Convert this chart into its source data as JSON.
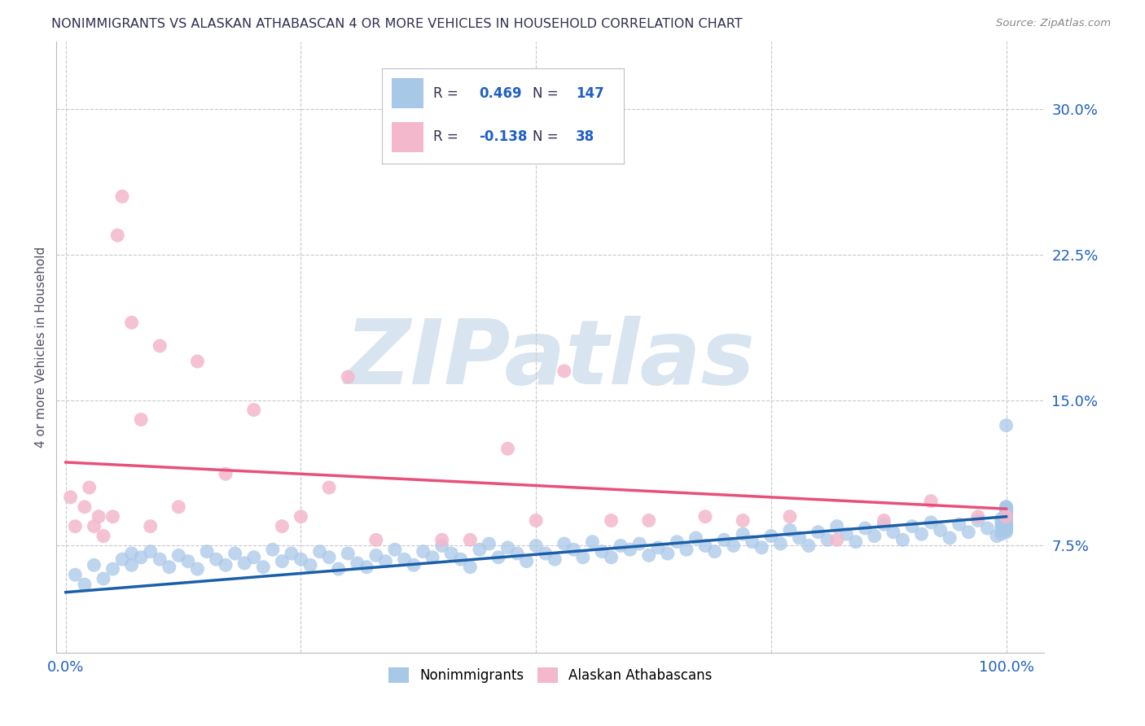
{
  "title": "NONIMMIGRANTS VS ALASKAN ATHABASCAN 4 OR MORE VEHICLES IN HOUSEHOLD CORRELATION CHART",
  "source": "Source: ZipAtlas.com",
  "ylabel": "4 or more Vehicles in Household",
  "y_ticks": [
    0.075,
    0.15,
    0.225,
    0.3
  ],
  "y_tick_labels": [
    "7.5%",
    "15.0%",
    "22.5%",
    "30.0%"
  ],
  "ylim": [
    0.02,
    0.335
  ],
  "xlim": [
    -0.01,
    1.04
  ],
  "blue_R": "0.469",
  "blue_N": "147",
  "pink_R": "-0.138",
  "pink_N": "38",
  "blue_color": "#a8c8e8",
  "pink_color": "#f4b8cc",
  "blue_line_color": "#1a5fa8",
  "pink_line_color": "#e8507a",
  "watermark_text": "ZIPatlas",
  "watermark_color": "#d8e4f0",
  "title_color": "#303050",
  "axis_tick_color": "#2060c0",
  "legend_label_color": "#2060c0",
  "grid_color": "#c8c8d0",
  "background_color": "#ffffff",
  "blue_line_x0": 0.0,
  "blue_line_y0": 0.051,
  "blue_line_x1": 1.0,
  "blue_line_y1": 0.09,
  "pink_line_x0": 0.0,
  "pink_line_y0": 0.118,
  "pink_line_x1": 1.0,
  "pink_line_y1": 0.094,
  "blue_x": [
    0.01,
    0.02,
    0.03,
    0.04,
    0.05,
    0.06,
    0.07,
    0.07,
    0.08,
    0.09,
    0.1,
    0.11,
    0.12,
    0.13,
    0.14,
    0.15,
    0.16,
    0.17,
    0.18,
    0.19,
    0.2,
    0.21,
    0.22,
    0.23,
    0.24,
    0.25,
    0.26,
    0.27,
    0.28,
    0.29,
    0.3,
    0.31,
    0.32,
    0.33,
    0.34,
    0.35,
    0.36,
    0.37,
    0.38,
    0.39,
    0.4,
    0.41,
    0.42,
    0.43,
    0.44,
    0.45,
    0.46,
    0.47,
    0.48,
    0.49,
    0.5,
    0.51,
    0.52,
    0.53,
    0.54,
    0.55,
    0.56,
    0.57,
    0.58,
    0.59,
    0.6,
    0.61,
    0.62,
    0.63,
    0.64,
    0.65,
    0.66,
    0.67,
    0.68,
    0.69,
    0.7,
    0.71,
    0.72,
    0.73,
    0.74,
    0.75,
    0.76,
    0.77,
    0.78,
    0.79,
    0.8,
    0.81,
    0.82,
    0.83,
    0.84,
    0.85,
    0.86,
    0.87,
    0.88,
    0.89,
    0.9,
    0.91,
    0.92,
    0.93,
    0.94,
    0.95,
    0.96,
    0.97,
    0.98,
    0.99,
    0.995,
    0.995,
    0.995,
    0.995,
    0.995,
    1.0,
    1.0,
    1.0,
    1.0,
    1.0,
    1.0,
    1.0,
    1.0,
    1.0,
    1.0,
    1.0,
    1.0,
    1.0,
    1.0,
    1.0,
    1.0,
    1.0,
    1.0,
    1.0,
    1.0,
    1.0,
    1.0,
    1.0,
    1.0,
    1.0,
    1.0,
    1.0,
    1.0,
    1.0,
    1.0,
    1.0,
    1.0,
    1.0,
    1.0,
    1.0,
    1.0,
    1.0,
    1.0,
    1.0,
    1.0,
    1.0,
    1.0
  ],
  "blue_y": [
    0.06,
    0.055,
    0.065,
    0.058,
    0.063,
    0.068,
    0.071,
    0.065,
    0.069,
    0.072,
    0.068,
    0.064,
    0.07,
    0.067,
    0.063,
    0.072,
    0.068,
    0.065,
    0.071,
    0.066,
    0.069,
    0.064,
    0.073,
    0.067,
    0.071,
    0.068,
    0.065,
    0.072,
    0.069,
    0.063,
    0.071,
    0.066,
    0.064,
    0.07,
    0.067,
    0.073,
    0.068,
    0.065,
    0.072,
    0.069,
    0.075,
    0.071,
    0.068,
    0.064,
    0.073,
    0.076,
    0.069,
    0.074,
    0.071,
    0.067,
    0.075,
    0.071,
    0.068,
    0.076,
    0.073,
    0.069,
    0.077,
    0.072,
    0.069,
    0.075,
    0.073,
    0.076,
    0.07,
    0.074,
    0.071,
    0.077,
    0.073,
    0.079,
    0.075,
    0.072,
    0.078,
    0.075,
    0.081,
    0.077,
    0.074,
    0.08,
    0.076,
    0.083,
    0.079,
    0.075,
    0.082,
    0.078,
    0.085,
    0.081,
    0.077,
    0.084,
    0.08,
    0.086,
    0.082,
    0.078,
    0.085,
    0.081,
    0.087,
    0.083,
    0.079,
    0.086,
    0.082,
    0.088,
    0.084,
    0.08,
    0.087,
    0.083,
    0.089,
    0.085,
    0.081,
    0.088,
    0.084,
    0.09,
    0.086,
    0.082,
    0.089,
    0.085,
    0.091,
    0.087,
    0.083,
    0.09,
    0.086,
    0.092,
    0.088,
    0.084,
    0.091,
    0.087,
    0.093,
    0.089,
    0.085,
    0.092,
    0.088,
    0.094,
    0.09,
    0.086,
    0.093,
    0.089,
    0.095,
    0.091,
    0.087,
    0.094,
    0.137,
    0.09,
    0.086,
    0.093,
    0.089,
    0.095,
    0.091,
    0.087,
    0.094,
    0.09,
    0.086
  ],
  "pink_x": [
    0.005,
    0.01,
    0.02,
    0.025,
    0.03,
    0.035,
    0.04,
    0.05,
    0.055,
    0.06,
    0.07,
    0.08,
    0.09,
    0.1,
    0.12,
    0.14,
    0.17,
    0.2,
    0.23,
    0.25,
    0.28,
    0.3,
    0.33,
    0.4,
    0.43,
    0.47,
    0.5,
    0.53,
    0.58,
    0.62,
    0.68,
    0.72,
    0.77,
    0.82,
    0.87,
    0.92,
    0.97,
    1.0
  ],
  "pink_y": [
    0.1,
    0.085,
    0.095,
    0.105,
    0.085,
    0.09,
    0.08,
    0.09,
    0.235,
    0.255,
    0.19,
    0.14,
    0.085,
    0.178,
    0.095,
    0.17,
    0.112,
    0.145,
    0.085,
    0.09,
    0.105,
    0.162,
    0.078,
    0.078,
    0.078,
    0.125,
    0.088,
    0.165,
    0.088,
    0.088,
    0.09,
    0.088,
    0.09,
    0.078,
    0.088,
    0.098,
    0.09,
    0.09
  ]
}
